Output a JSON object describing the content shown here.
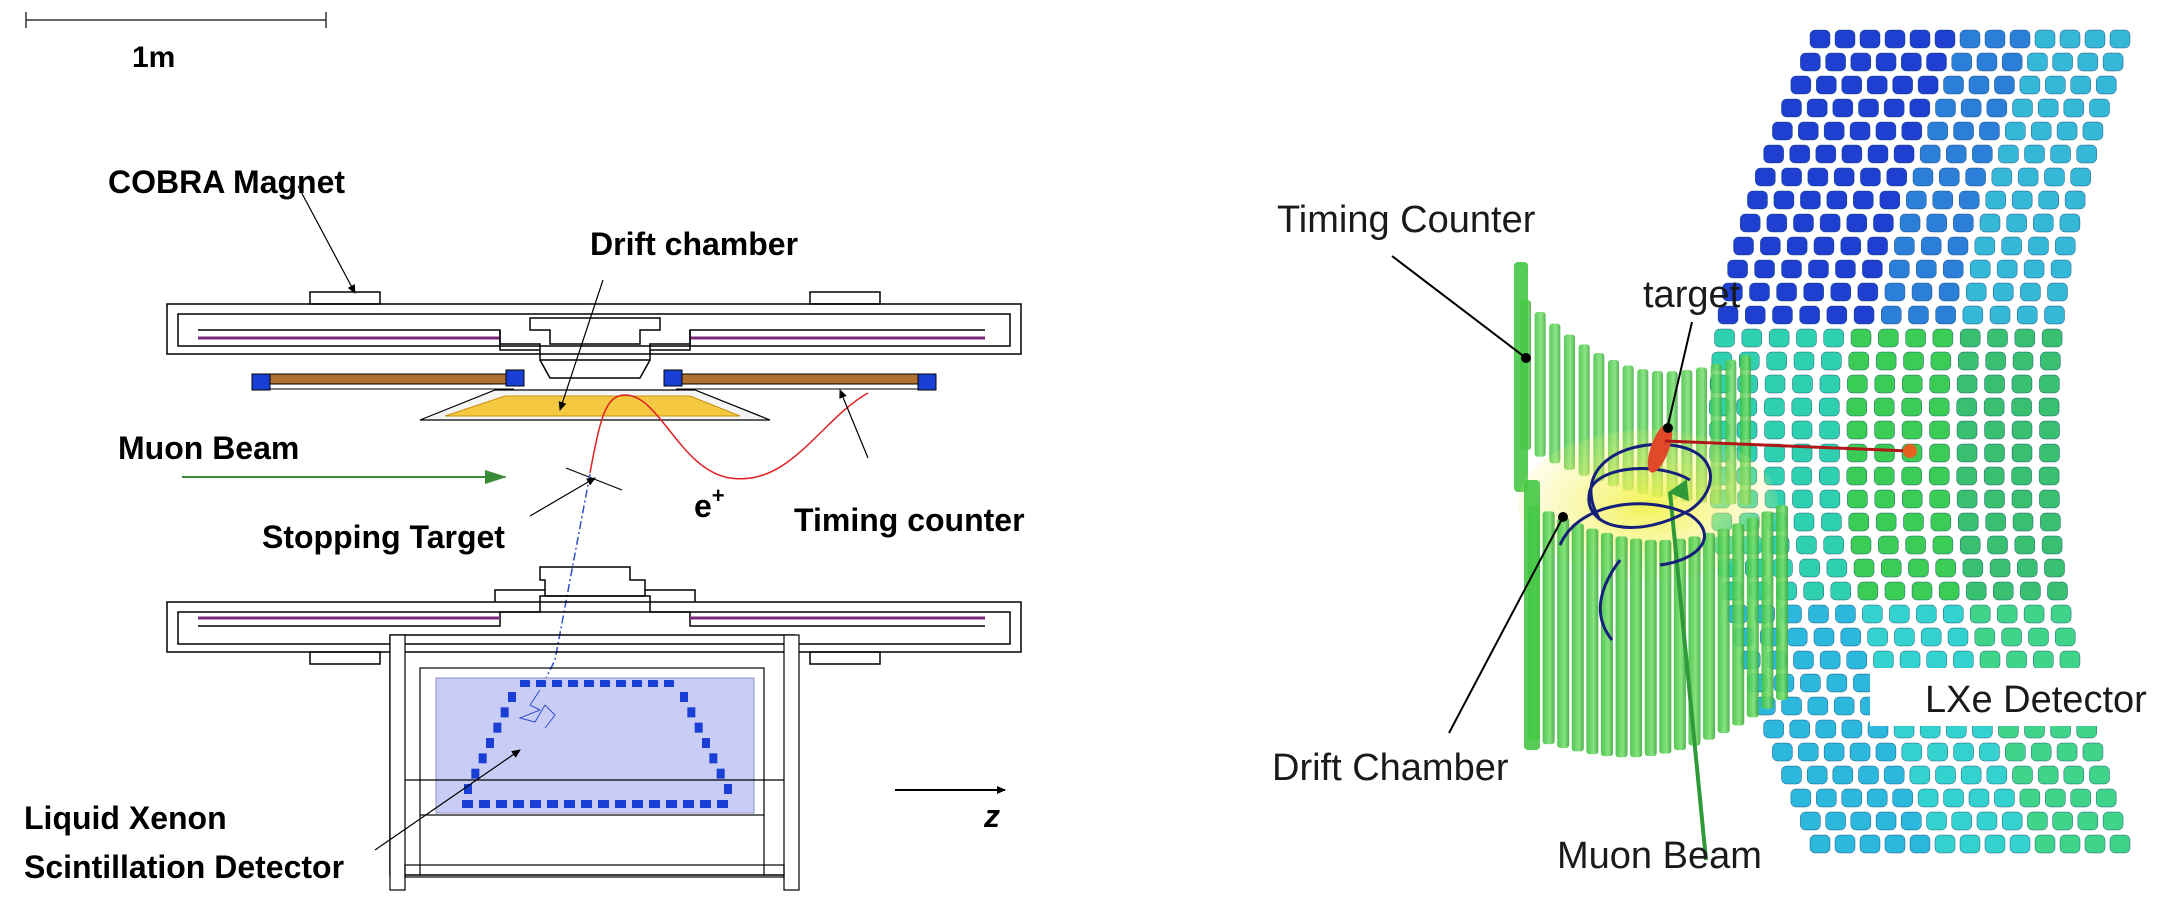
{
  "left_panel": {
    "scale_label": "1m",
    "labels": {
      "cobra_magnet": "COBRA Magnet",
      "drift_chamber": "Drift chamber",
      "muon_beam": "Muon Beam",
      "positron": "e",
      "positron_sup": "+",
      "stopping_target": "Stopping Target",
      "timing_counter": "Timing counter",
      "lxe_line1": "Liquid Xenon",
      "lxe_line2": "Scintillation Detector",
      "z_axis": "z"
    }
  },
  "right_panel": {
    "labels": {
      "timing_counter": "Timing Counter",
      "target": "target",
      "drift_chamber": "Drift Chamber",
      "muon_beam": "Muon Beam",
      "lxe_detector": "LXe Detector"
    }
  },
  "colors": {
    "outline": "#000000",
    "magnet_coil": "#7a2a7a",
    "timing_bar": "#b07030",
    "timing_end": "#1a3fd6",
    "drift_fill": "#f5c842",
    "beam_arrow": "#3a8a3a",
    "positron_track": "#e02020",
    "gamma_track": "#2f4fcf",
    "lxe_fill": "#c9ccf5",
    "pmt": "#1a3fd6",
    "green_bar": "#4fd24f",
    "target_red": "#e04a2a",
    "helix": "#15207a"
  }
}
